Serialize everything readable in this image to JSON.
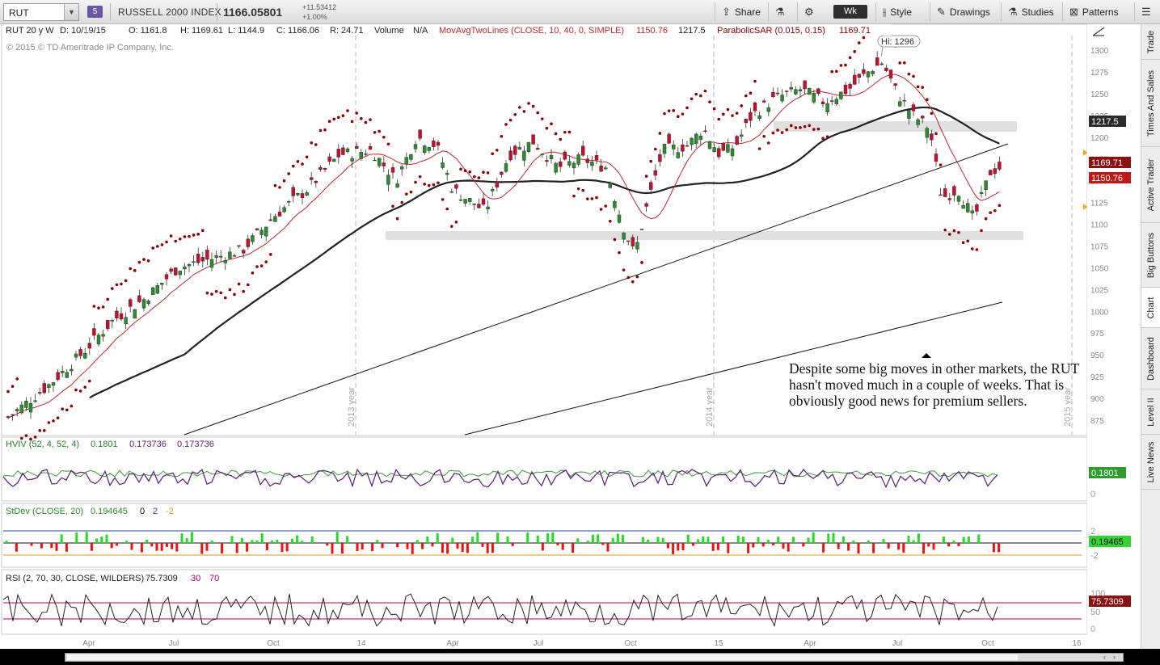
{
  "toolbar": {
    "symbol": "RUT",
    "link_badge": "5",
    "index_name": "RUSSELL 2000 INDEX",
    "last_price": "1166.05801",
    "net_change": "+11.53412",
    "pct_change": "+1.00%",
    "share_label": "Share",
    "aggregation": "Wk",
    "style_label": "Style",
    "drawings_label": "Drawings",
    "studies_label": "Studies",
    "patterns_label": "Patterns"
  },
  "header": {
    "symbol_period": "RUT 20 y W",
    "date": "D: 10/19/15",
    "open": "O: 1161.8",
    "high": "H: 1169.61",
    "low": "L: 1144.9",
    "close": "C: 1166.06",
    "range": "R: 24.71",
    "volume_label": "Volume",
    "volume_value": "N/A",
    "study1": "MovAvgTwoLines (CLOSE, 10, 40, 0, SIMPLE)",
    "study1_v1": "1150.76",
    "study1_v2": "1217.5",
    "study2": "ParabolicSAR (0.015, 0.15)",
    "study2_v": "1169.71",
    "copyright": "© 2015 © TD Ameritrade IP Company, Inc.",
    "hi_label": "Hi: 1296"
  },
  "price_axis": {
    "ticks": [
      "1300",
      "1275",
      "1250",
      "1225",
      "1200",
      "1175",
      "1150",
      "1125",
      "1100",
      "1075",
      "1050",
      "1025",
      "1000",
      "975",
      "950",
      "925",
      "900",
      "875"
    ],
    "badges": {
      "ma40": "1217.5",
      "sar": "1169.71",
      "ma10": "1150.76"
    }
  },
  "year_markers": [
    "2013 year",
    "2014 year",
    "2015 year"
  ],
  "annotation": "Despite some big moves in other markets, the RUT hasn't moved much in a couple of weeks.  That is obviously good news for premium sellers.",
  "hviv": {
    "label": "HVIV (52, 4, 52, 4)",
    "v1": "0.1801",
    "v2": "0.173736",
    "v3": "0.173736",
    "badge": "0.1801",
    "zero": "0"
  },
  "stdev": {
    "label": "StDev (CLOSE, 20)",
    "v1": "0.194645",
    "v2": "0",
    "v3": "2",
    "v4": "-2",
    "badge": "0.19465",
    "tick_top": "2",
    "tick_bottom": "-2"
  },
  "rsi": {
    "label": "RSI (2, 70, 30, CLOSE, WILDERS)",
    "v1": "75.7309",
    "v2": "30",
    "v3": "70",
    "badge": "75.7309",
    "ticks": [
      "100",
      "50",
      "0"
    ]
  },
  "time_axis": [
    "Apr",
    "Jul",
    "Oct",
    "14",
    "Apr",
    "Jul",
    "Oct",
    "15",
    "Apr",
    "Jul",
    "Oct",
    "16"
  ],
  "side_tabs": [
    "Trade",
    "Times And Sales",
    "Active Trader",
    "Big Buttons",
    "Chart",
    "Dashboard",
    "Level II",
    "Live News"
  ],
  "colors": {
    "up_candle": "#2e8b2e",
    "down_candle": "#c8102e",
    "ma10": "#c0282c",
    "ma40": "#222222",
    "sar": "#8b0000",
    "hviv_hv": "#3a9a3a",
    "hviv_iv": "#5a1a78",
    "rsi_over": "#b0006e"
  }
}
